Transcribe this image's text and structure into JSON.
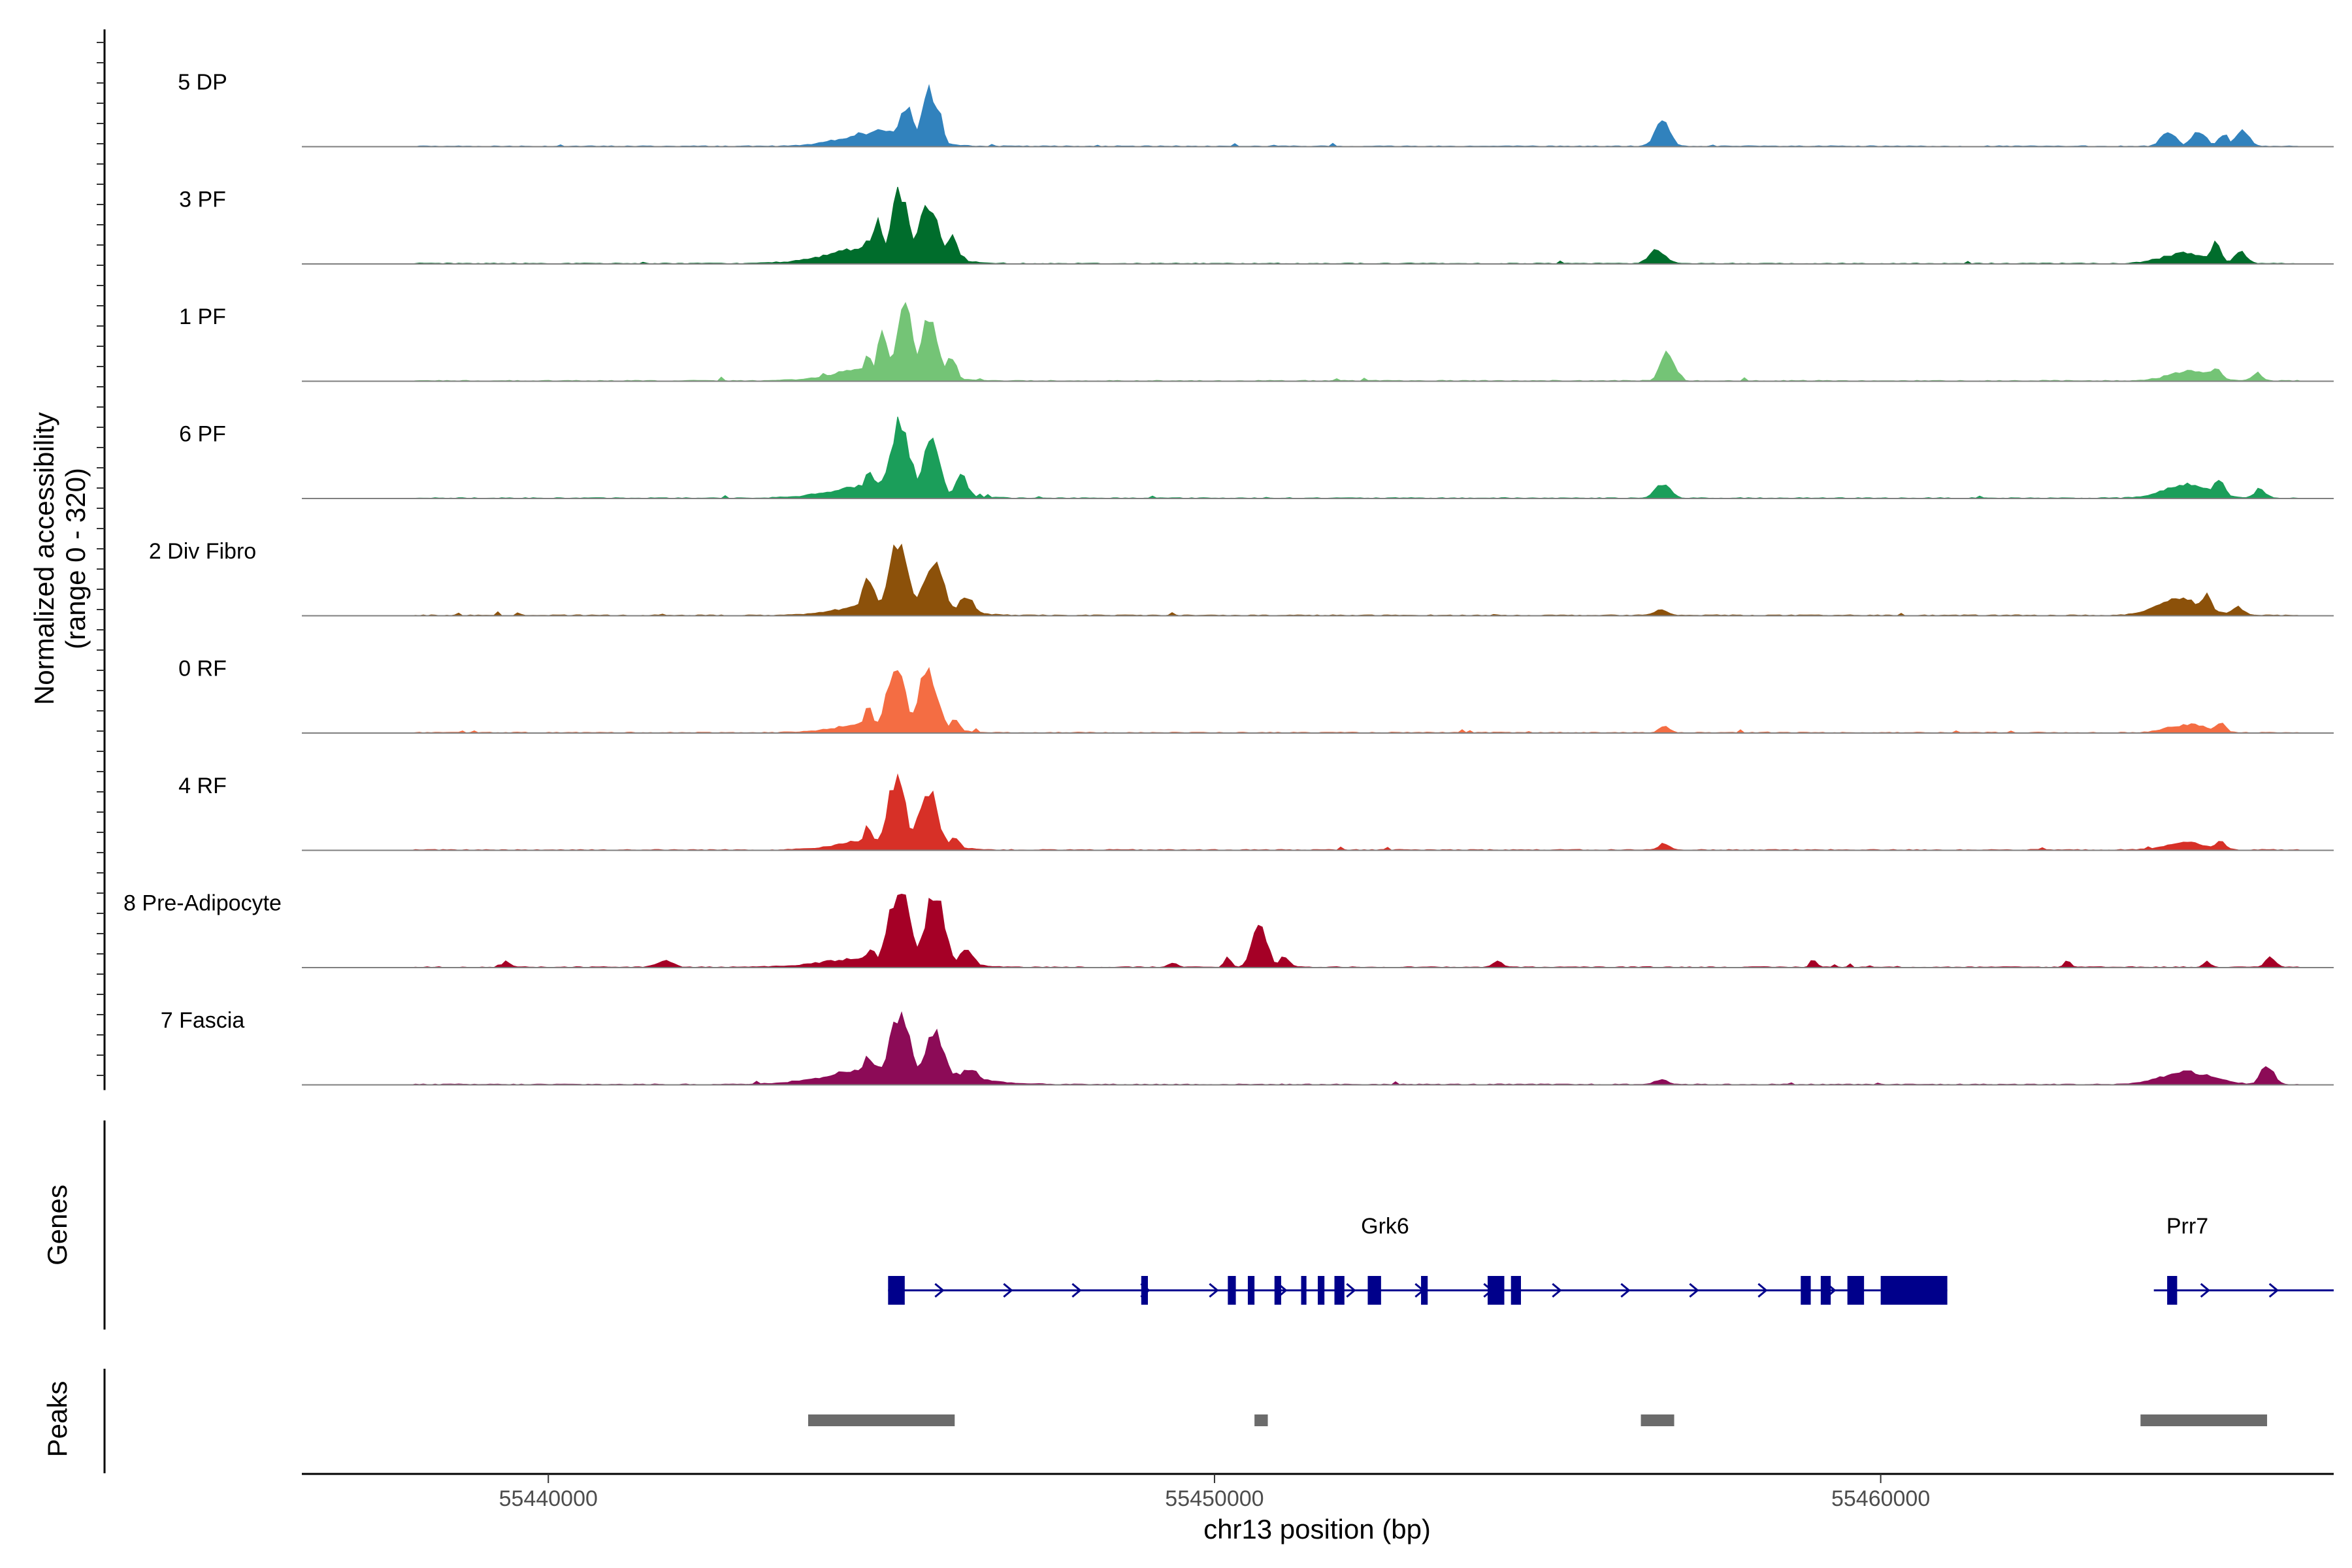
{
  "chart_data": {
    "type": "area",
    "title": "",
    "ylabel": "Normalized accessibility",
    "ylabel_range": "(range 0 - 320)",
    "xlabel": "chr13 position (bp)",
    "xlim": [
      55436300,
      55466800
    ],
    "ylim": [
      0,
      320
    ],
    "x_ticks": [
      55440000,
      55450000,
      55460000
    ],
    "x_tick_labels": [
      "55440000",
      "55450000",
      "55460000"
    ],
    "series": [
      {
        "name": "5 DP",
        "color": "#3182bd",
        "peaks": [
          [
            55443900,
            55446100,
            55,
            5
          ],
          [
            55444700,
            55445400,
            60,
            34
          ],
          [
            55445150,
            55445600,
            140,
            26
          ],
          [
            55445500,
            55445900,
            220,
            18
          ],
          [
            55445650,
            55446000,
            150,
            22
          ],
          [
            55456500,
            55456950,
            90,
            16
          ],
          [
            55464100,
            55464550,
            55,
            18
          ],
          [
            55464550,
            55465000,
            55,
            16
          ],
          [
            55465000,
            55465300,
            45,
            18
          ],
          [
            55465200,
            55465650,
            55,
            18
          ]
        ]
      },
      {
        "name": "3 PF",
        "color": "#006d2c",
        "peaks": [
          [
            55443600,
            55446300,
            65,
            6
          ],
          [
            55444650,
            55444950,
            90,
            20
          ],
          [
            55444800,
            55445100,
            160,
            14
          ],
          [
            55445000,
            55445550,
            270,
            22
          ],
          [
            55445400,
            55446000,
            230,
            16
          ],
          [
            55445850,
            55446250,
            100,
            18
          ],
          [
            55456400,
            55456900,
            50,
            14
          ],
          [
            55463900,
            55465200,
            40,
            18
          ],
          [
            55464850,
            55465200,
            75,
            12
          ],
          [
            55465200,
            55465600,
            42,
            14
          ]
        ]
      },
      {
        "name": "1 PF",
        "color": "#74c476",
        "peaks": [
          [
            55443800,
            55446200,
            55,
            6
          ],
          [
            55444650,
            55444950,
            90,
            20
          ],
          [
            55444850,
            55445200,
            180,
            14
          ],
          [
            55445100,
            55445600,
            290,
            22
          ],
          [
            55445450,
            55446000,
            230,
            16
          ],
          [
            55445900,
            55446200,
            90,
            16
          ],
          [
            55456600,
            55457000,
            110,
            22
          ],
          [
            55464000,
            55465300,
            38,
            16
          ],
          [
            55464850,
            55465200,
            50,
            12
          ],
          [
            55465500,
            55465800,
            28,
            10
          ]
        ]
      },
      {
        "name": "6 PF",
        "color": "#1b9e5a",
        "peaks": [
          [
            55443700,
            55446400,
            55,
            6
          ],
          [
            55444650,
            55445000,
            95,
            20
          ],
          [
            55444950,
            55445600,
            270,
            24
          ],
          [
            55445500,
            55446000,
            230,
            16
          ],
          [
            55446000,
            55446400,
            80,
            16
          ],
          [
            55456500,
            55456950,
            55,
            16
          ],
          [
            55463900,
            55465300,
            50,
            18
          ],
          [
            55464900,
            55465250,
            65,
            12
          ],
          [
            55465500,
            55465900,
            28,
            10
          ]
        ]
      },
      {
        "name": "2 Div Fibro",
        "color": "#8c510a",
        "peaks": [
          [
            55443900,
            55446500,
            55,
            6
          ],
          [
            55444600,
            55445000,
            130,
            20
          ],
          [
            55444950,
            55445550,
            270,
            24
          ],
          [
            55445450,
            55446100,
            190,
            18
          ],
          [
            55446050,
            55446500,
            70,
            16
          ],
          [
            55456500,
            55456900,
            20,
            10
          ],
          [
            55463800,
            55465200,
            60,
            18
          ],
          [
            55464750,
            55465050,
            85,
            12
          ],
          [
            55465150,
            55465550,
            32,
            12
          ]
        ]
      },
      {
        "name": "0 RF",
        "color": "#f46d43",
        "peaks": [
          [
            55443900,
            55446300,
            45,
            6
          ],
          [
            55444650,
            55444950,
            90,
            20
          ],
          [
            55444950,
            55445500,
            260,
            22
          ],
          [
            55445400,
            55446000,
            230,
            16
          ],
          [
            55445950,
            55446250,
            50,
            14
          ],
          [
            55456600,
            55456900,
            25,
            10
          ],
          [
            55464000,
            55465200,
            30,
            14
          ],
          [
            55464950,
            55465250,
            38,
            12
          ]
        ]
      },
      {
        "name": "4 RF",
        "color": "#d73027",
        "peaks": [
          [
            55443900,
            55446300,
            45,
            6
          ],
          [
            55444650,
            55444950,
            90,
            20
          ],
          [
            55444950,
            55445500,
            270,
            22
          ],
          [
            55445400,
            55446000,
            220,
            16
          ],
          [
            55445950,
            55446250,
            50,
            14
          ],
          [
            55456600,
            55456900,
            25,
            10
          ],
          [
            55464000,
            55465200,
            28,
            14
          ],
          [
            55464950,
            55465250,
            32,
            12
          ]
        ]
      },
      {
        "name": "8 Pre-Adipocyte",
        "color": "#a50026",
        "peaks": [
          [
            55443500,
            55446600,
            40,
            8
          ],
          [
            55444700,
            55445000,
            70,
            20
          ],
          [
            55444950,
            55445600,
            300,
            24
          ],
          [
            55445500,
            55446100,
            270,
            18
          ],
          [
            55446050,
            55446500,
            60,
            16
          ],
          [
            55449250,
            55449500,
            18,
            8
          ],
          [
            55450100,
            55450300,
            40,
            10
          ],
          [
            55450450,
            55450900,
            160,
            14
          ],
          [
            55450900,
            55451200,
            40,
            10
          ],
          [
            55439250,
            55439500,
            22,
            8
          ],
          [
            55441500,
            55442000,
            24,
            8
          ],
          [
            55454100,
            55454400,
            22,
            8
          ],
          [
            55458900,
            55459100,
            25,
            8
          ],
          [
            55462700,
            55462900,
            22,
            8
          ],
          [
            55464800,
            55465000,
            22,
            8
          ],
          [
            55465700,
            55466000,
            40,
            12
          ]
        ]
      },
      {
        "name": "7 Fascia",
        "color": "#8c0b57",
        "peaks": [
          [
            55443500,
            55446900,
            70,
            8
          ],
          [
            55444600,
            55445000,
            100,
            20
          ],
          [
            55444950,
            55445600,
            250,
            22
          ],
          [
            55445500,
            55446100,
            200,
            18
          ],
          [
            55446050,
            55446600,
            60,
            16
          ],
          [
            55456500,
            55456900,
            18,
            8
          ],
          [
            55463800,
            55465400,
            45,
            18
          ],
          [
            55465600,
            55466000,
            70,
            12
          ]
        ]
      }
    ],
    "genes": {
      "label": "Genes",
      "color": "#00008b",
      "items": [
        {
          "name": "Grk6",
          "start": 55445100,
          "end": 55461000,
          "strand": "+",
          "exons": [
            [
              55445100,
              55445350
            ],
            [
              55448900,
              55449000
            ],
            [
              55450200,
              55450320
            ],
            [
              55450500,
              55450600
            ],
            [
              55450900,
              55451000
            ],
            [
              55451300,
              55451380
            ],
            [
              55451550,
              55451650
            ],
            [
              55451800,
              55451950
            ],
            [
              55452300,
              55452500
            ],
            [
              55453100,
              55453200
            ],
            [
              55454100,
              55454350
            ],
            [
              55454450,
              55454600
            ],
            [
              55458800,
              55458950
            ],
            [
              55459100,
              55459250
            ],
            [
              55459500,
              55459750
            ],
            [
              55460000,
              55461000
            ]
          ]
        },
        {
          "name": "Prr7",
          "start": 55464100,
          "end": 55466800,
          "strand": "+",
          "exons": [
            [
              55464300,
              55464450
            ]
          ]
        }
      ]
    },
    "peaks_track": {
      "label": "Peaks",
      "color": "#6b6b6b",
      "regions": [
        [
          55443900,
          55446100
        ],
        [
          55450600,
          55450800
        ],
        [
          55456400,
          55456900
        ],
        [
          55463900,
          55465800
        ]
      ]
    }
  }
}
